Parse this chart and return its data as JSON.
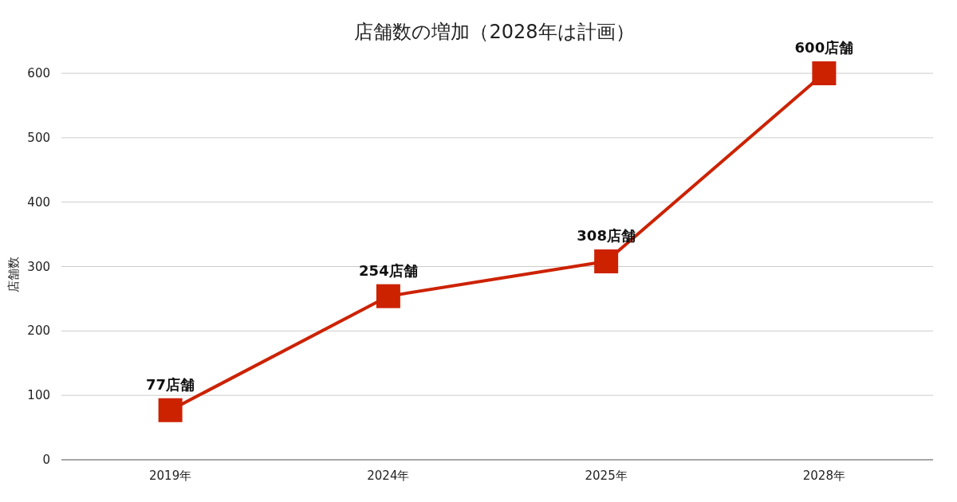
{
  "chart_data": {
    "type": "line",
    "title": "店舗数の増加（2028年は計画）",
    "ylabel": "店舗数",
    "categories": [
      "2019年",
      "2024年",
      "2025年",
      "2028年"
    ],
    "series": [
      {
        "color": "#cc2200",
        "values": [
          77,
          254,
          308,
          600
        ],
        "value_labels": [
          "77店舗",
          "254店舗",
          "308店舗",
          "600店舗"
        ]
      }
    ],
    "ylim": [
      0,
      600
    ],
    "yticks": [
      0,
      100,
      200,
      300,
      400,
      500,
      600
    ],
    "grid": "y",
    "marker": "square",
    "line_style": "solid"
  }
}
